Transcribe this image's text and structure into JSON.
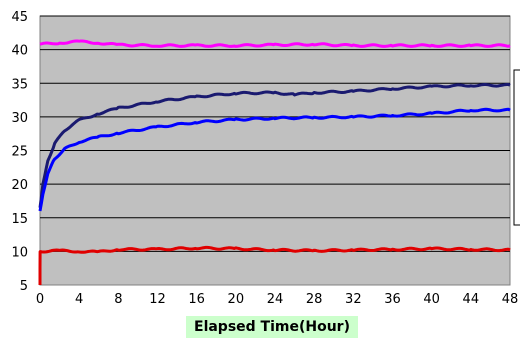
{
  "chart_data": {
    "type": "line",
    "title": "",
    "xlabel": "Elapsed Time(Hour)",
    "ylabel": "",
    "xlim": [
      0,
      48
    ],
    "ylim": [
      5,
      45
    ],
    "xticks": [
      0,
      4,
      8,
      12,
      16,
      20,
      24,
      28,
      32,
      36,
      40,
      44,
      48
    ],
    "yticks": [
      5,
      10,
      15,
      20,
      25,
      30,
      35,
      40,
      45
    ],
    "grid": true,
    "background": "#c0c0c0",
    "legend": "right (cropped)",
    "series": [
      {
        "color": "#ff00ff",
        "x": [
          0,
          2,
          4,
          6,
          8,
          12,
          16,
          20,
          24,
          28,
          32,
          36,
          40,
          44,
          48
        ],
        "y": [
          40.8,
          41.0,
          41.2,
          41.0,
          40.7,
          40.6,
          40.6,
          40.6,
          40.7,
          40.8,
          40.6,
          40.6,
          40.6,
          40.6,
          40.6
        ]
      },
      {
        "color": "#1a1a70",
        "x": [
          0,
          0.3,
          0.8,
          1.5,
          2.5,
          4,
          6,
          8,
          12,
          16,
          20,
          24,
          26,
          28,
          32,
          36,
          40,
          44,
          48
        ],
        "y": [
          16.5,
          20,
          23.5,
          26,
          28,
          29.5,
          30.5,
          31.3,
          32.3,
          33.0,
          33.5,
          33.6,
          33.3,
          33.6,
          33.8,
          34.2,
          34.5,
          34.7,
          34.7
        ]
      },
      {
        "color": "#0000ff",
        "x": [
          0,
          0.3,
          0.8,
          1.5,
          2.5,
          4,
          6,
          8,
          12,
          16,
          20,
          24,
          28,
          32,
          36,
          40,
          44,
          48
        ],
        "y": [
          16.0,
          18.5,
          21.5,
          23.8,
          25.2,
          26.3,
          27.0,
          27.6,
          28.5,
          29.2,
          29.6,
          29.8,
          29.9,
          30.0,
          30.2,
          30.5,
          31.0,
          31.0
        ]
      },
      {
        "color": "#e00000",
        "x": [
          0,
          0.01,
          0.02,
          2,
          4,
          6,
          8,
          12,
          16,
          20,
          24,
          28,
          32,
          36,
          40,
          44,
          48
        ],
        "y": [
          5,
          9.9,
          10.0,
          10.1,
          10.0,
          9.9,
          10.3,
          10.3,
          10.5,
          10.4,
          10.2,
          10.1,
          10.2,
          10.3,
          10.4,
          10.3,
          10.2
        ]
      }
    ]
  }
}
